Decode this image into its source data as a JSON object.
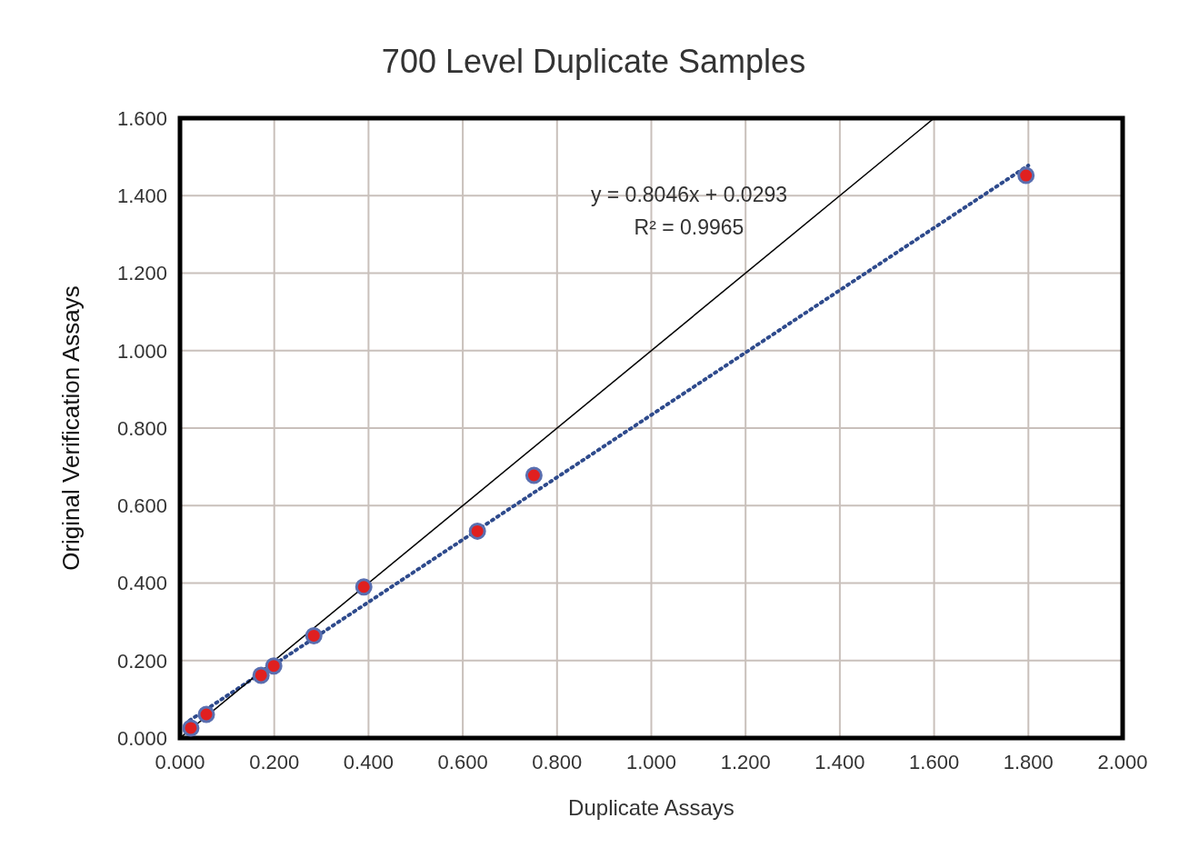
{
  "chart_data": {
    "type": "scatter",
    "title": "700 Level Duplicate Samples",
    "xlabel": "Duplicate Assays",
    "ylabel": "Original Verification Assays",
    "series": [
      {
        "color": "#e02020",
        "marker": "circle",
        "x": [
          0.023,
          0.056,
          0.172,
          0.199,
          0.284,
          0.39,
          0.631,
          0.751,
          1.795
        ],
        "values": [
          0.026,
          0.061,
          0.162,
          0.186,
          0.264,
          0.39,
          0.534,
          0.678,
          1.452
        ]
      },
      {
        "type": "line",
        "color": "#2e4a8c",
        "line_style": "dotted",
        "x": [
          0.02,
          1.8
        ],
        "values": [
          0.045,
          1.478
        ]
      },
      {
        "type": "line",
        "color": "#000000",
        "line_style": "solid",
        "x": [
          0,
          1.6
        ],
        "values": [
          0,
          1.6
        ]
      }
    ],
    "xlim": [
      0,
      2
    ],
    "ylim": [
      0,
      1.6
    ],
    "xticks": [
      {
        "value": 0,
        "label": "0.000"
      },
      {
        "value": 0.2,
        "label": "0.200"
      },
      {
        "value": 0.4,
        "label": "0.400"
      },
      {
        "value": 0.6,
        "label": "0.600"
      },
      {
        "value": 0.8,
        "label": "0.800"
      },
      {
        "value": 1,
        "label": "1.000"
      },
      {
        "value": 1.2,
        "label": "1.200"
      },
      {
        "value": 1.4,
        "label": "1.400"
      },
      {
        "value": 1.6,
        "label": "1.600"
      },
      {
        "value": 1.8,
        "label": "1.800"
      },
      {
        "value": 2,
        "label": "2.000"
      }
    ],
    "yticks": [
      {
        "value": 0,
        "label": "0.000"
      },
      {
        "value": 0.2,
        "label": "0.200"
      },
      {
        "value": 0.4,
        "label": "0.400"
      },
      {
        "value": 0.6,
        "label": "0.600"
      },
      {
        "value": 0.8,
        "label": "0.800"
      },
      {
        "value": 1,
        "label": "1.000"
      },
      {
        "value": 1.2,
        "label": "1.200"
      },
      {
        "value": 1.4,
        "label": "1.400"
      },
      {
        "value": 1.6,
        "label": "1.600"
      }
    ],
    "annotations": [
      "y = 0.8046x + 0.0293",
      "R² = 0.9965"
    ],
    "grid": true
  }
}
